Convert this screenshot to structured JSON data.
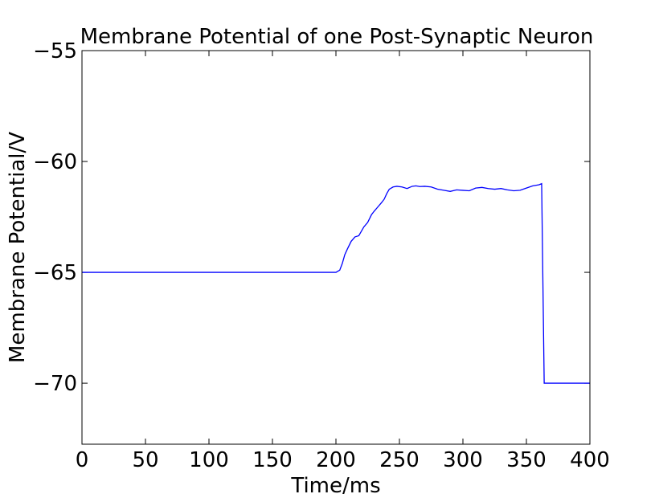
{
  "chart_data": {
    "type": "line",
    "title": "Membrane Potential of one Post-Synaptic Neuron",
    "xlabel": "Time/ms",
    "ylabel": "Membrane Potential/V",
    "xlim": [
      0,
      400
    ],
    "ylim": [
      -72.75,
      -55
    ],
    "xticks": [
      0,
      50,
      100,
      150,
      200,
      250,
      300,
      350,
      400
    ],
    "xtick_labels": [
      "0",
      "50",
      "100",
      "150",
      "200",
      "250",
      "300",
      "350",
      "400"
    ],
    "yticks": [
      -55,
      -60,
      -65,
      -70
    ],
    "ytick_labels": [
      "−55",
      "−60",
      "−65",
      "−70"
    ],
    "grid": false,
    "colors": {
      "line": "#0000ff",
      "axes": "#000000",
      "background": "#ffffff"
    },
    "series": [
      {
        "x": [
          0,
          200,
          203,
          205,
          207,
          209,
          212,
          215,
          218,
          222,
          225,
          228,
          230,
          233,
          236,
          238,
          240,
          242,
          245,
          248,
          252,
          256,
          260,
          263,
          266,
          270,
          275,
          280,
          285,
          290,
          295,
          300,
          305,
          310,
          315,
          320,
          325,
          330,
          335,
          340,
          345,
          350,
          355,
          360,
          362,
          364,
          400
        ],
        "y": [
          -65,
          -65,
          -64.9,
          -64.6,
          -64.2,
          -63.95,
          -63.6,
          -63.4,
          -63.35,
          -62.95,
          -62.75,
          -62.4,
          -62.25,
          -62.05,
          -61.85,
          -61.7,
          -61.45,
          -61.25,
          -61.15,
          -61.12,
          -61.15,
          -61.22,
          -61.12,
          -61.1,
          -61.13,
          -61.12,
          -61.15,
          -61.25,
          -61.3,
          -61.35,
          -61.28,
          -61.3,
          -61.32,
          -61.2,
          -61.17,
          -61.22,
          -61.25,
          -61.22,
          -61.28,
          -61.32,
          -61.3,
          -61.2,
          -61.1,
          -61.05,
          -61.0,
          -70,
          -70
        ]
      }
    ]
  }
}
